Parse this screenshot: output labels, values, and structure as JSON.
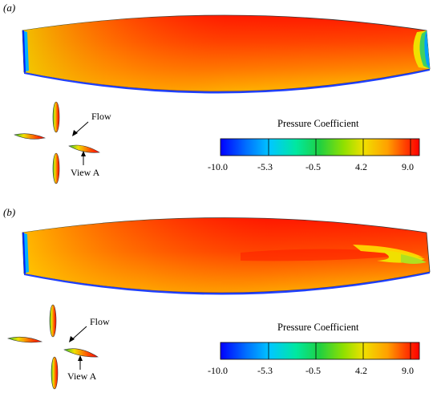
{
  "panels": [
    {
      "tag": "(a)",
      "flow_label": "Flow",
      "view_label": "View A",
      "colorbar": {
        "title": "Pressure Coefficient",
        "ticks": [
          "-10.0",
          "-5.3",
          "-0.5",
          "4.2",
          "9.0"
        ]
      }
    },
    {
      "tag": "(b)",
      "flow_label": "Flow",
      "view_label": "View A",
      "colorbar": {
        "title": "Pressure Coefficient",
        "ticks": [
          "-10.0",
          "-5.3",
          "-0.5",
          "4.2",
          "9.0"
        ]
      }
    }
  ],
  "colors": {
    "scale": [
      "#0000ff",
      "#00a0ff",
      "#00e0b0",
      "#30d030",
      "#a0e000",
      "#f0e000",
      "#ff9a00",
      "#ff3000",
      "#ff0000"
    ]
  }
}
